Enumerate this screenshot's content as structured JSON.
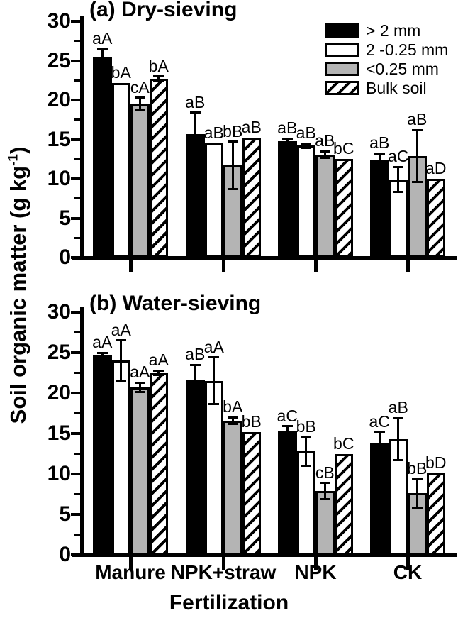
{
  "figure": {
    "background": "#ffffff",
    "ink_color": "#000000",
    "gray_fill": "#b4b4b4",
    "ylabel_prefix": "Soil organic matter (g kg",
    "ylabel_sup": "-1",
    "ylabel_suffix": ")",
    "xlabel": "Fertilization"
  },
  "legend": {
    "position": "top-right",
    "items": [
      {
        "label": "> 2 mm",
        "swatch": "solid-black"
      },
      {
        "label": "2 -0.25 mm",
        "swatch": "white-outline"
      },
      {
        "label": "<0.25 mm",
        "swatch": "gray-fill"
      },
      {
        "label": "Bulk soil",
        "swatch": "diagonal-hatch"
      }
    ]
  },
  "chart_data": [
    {
      "type": "bar",
      "panel": "a",
      "title": "(a) Dry-sieving",
      "xlabel": "Fertilization",
      "ylabel": "Soil organic matter (g kg-1)",
      "ylim": [
        0,
        30
      ],
      "yticks": [
        0,
        5,
        10,
        15,
        20,
        25,
        30
      ],
      "minor_tick_step": 2.5,
      "grid": false,
      "legend_position": "upper right",
      "categories": [
        "Manure",
        "NPK+straw",
        "NPK",
        "CK"
      ],
      "series": [
        {
          "name": "> 2 mm",
          "fill": "black",
          "values": [
            25.4,
            15.7,
            14.8,
            12.3
          ],
          "errors": [
            1.1,
            2.7,
            0.3,
            0.9
          ],
          "sig_labels": [
            "aA",
            "aB",
            "aB",
            "aB"
          ]
        },
        {
          "name": "2 -0.25 mm",
          "fill": "white",
          "values": [
            22.2,
            14.5,
            14.2,
            9.9
          ],
          "errors": [
            0,
            0,
            0.3,
            1.6
          ],
          "sig_labels": [
            "bA",
            "aB",
            "aB",
            "aC"
          ]
        },
        {
          "name": "<0.25 mm",
          "fill": "gray",
          "values": [
            19.5,
            11.7,
            13.1,
            12.9
          ],
          "errors": [
            0.8,
            3.0,
            0.4,
            3.3
          ],
          "sig_labels": [
            "cA",
            "bB",
            "aB",
            "aB"
          ]
        },
        {
          "name": "Bulk soil",
          "fill": "hatch",
          "values": [
            22.7,
            15.2,
            12.5,
            10.0
          ],
          "errors": [
            0.3,
            0,
            0,
            0
          ],
          "sig_labels": [
            "bA",
            "aB",
            "bC",
            "aD"
          ]
        }
      ]
    },
    {
      "type": "bar",
      "panel": "b",
      "title": "(b) Water-sieving",
      "xlabel": "Fertilization",
      "ylabel": "Soil organic matter (g kg-1)",
      "ylim": [
        0,
        30
      ],
      "yticks": [
        0,
        5,
        10,
        15,
        20,
        25,
        30
      ],
      "minor_tick_step": 2.5,
      "grid": false,
      "categories": [
        "Manure",
        "NPK+straw",
        "NPK",
        "CK"
      ],
      "series": [
        {
          "name": "> 2 mm",
          "fill": "black",
          "values": [
            24.7,
            21.7,
            15.3,
            13.9
          ],
          "errors": [
            0.3,
            1.8,
            0.6,
            1.3
          ],
          "sig_labels": [
            "aA",
            "aB",
            "aC",
            "aC"
          ]
        },
        {
          "name": "2 -0.25 mm",
          "fill": "white",
          "values": [
            24.0,
            21.5,
            12.8,
            14.3
          ],
          "errors": [
            2.5,
            2.9,
            1.8,
            2.6
          ],
          "sig_labels": [
            "aA",
            "aA",
            "bB",
            "aB"
          ]
        },
        {
          "name": "<0.25 mm",
          "fill": "gray",
          "values": [
            20.7,
            16.6,
            7.9,
            7.6
          ],
          "errors": [
            0.6,
            0.4,
            1.0,
            1.8
          ],
          "sig_labels": [
            "aA",
            "bA",
            "cB",
            "bB"
          ]
        },
        {
          "name": "Bulk soil",
          "fill": "hatch",
          "values": [
            22.5,
            15.2,
            12.5,
            10.1
          ],
          "errors": [
            0.3,
            0,
            0,
            0
          ],
          "sig_labels": [
            "aA",
            "bB",
            "bC",
            "bD"
          ]
        }
      ]
    }
  ]
}
